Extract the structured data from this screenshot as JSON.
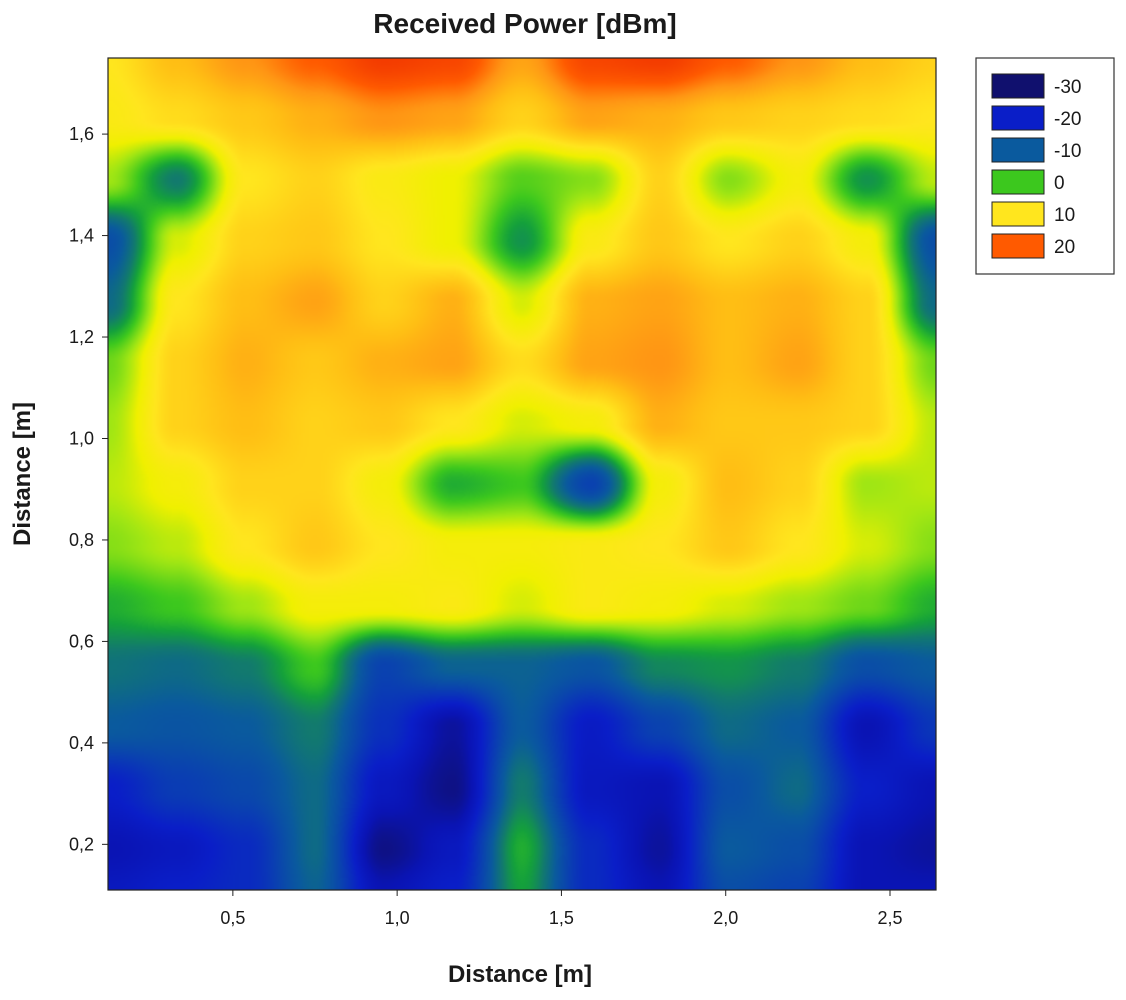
{
  "chart_data": {
    "type": "heatmap",
    "title": "Received Power [dBm]",
    "xlabel": "Distance [m]",
    "ylabel": "Distance [m]",
    "xlim": [
      0.12,
      2.64
    ],
    "ylim": [
      0.11,
      1.75
    ],
    "x_ticks": [
      {
        "value": 0.5,
        "label": "0,5"
      },
      {
        "value": 1.0,
        "label": "1,0"
      },
      {
        "value": 1.5,
        "label": "1,5"
      },
      {
        "value": 2.0,
        "label": "2,0"
      },
      {
        "value": 2.5,
        "label": "2,5"
      }
    ],
    "y_ticks": [
      {
        "value": 0.2,
        "label": "0,2"
      },
      {
        "value": 0.4,
        "label": "0,4"
      },
      {
        "value": 0.6,
        "label": "0,6"
      },
      {
        "value": 0.8,
        "label": "0,8"
      },
      {
        "value": 1.0,
        "label": "1,0"
      },
      {
        "value": 1.2,
        "label": "1,2"
      },
      {
        "value": 1.4,
        "label": "1,4"
      },
      {
        "value": 1.6,
        "label": "1,6"
      }
    ],
    "legend": {
      "position": "top-right",
      "entries": [
        {
          "label": "-30",
          "value": -30,
          "color": "#10106e"
        },
        {
          "label": "-20",
          "value": -20,
          "color": "#0a1ec8"
        },
        {
          "label": "-10",
          "value": -10,
          "color": "#0a5a9e"
        },
        {
          "label": "0",
          "value": 0,
          "color": "#3cc81e"
        },
        {
          "label": "10",
          "value": 10,
          "color": "#ffe61e"
        },
        {
          "label": "20",
          "value": 20,
          "color": "#ff5a00"
        }
      ]
    },
    "colorscale": [
      {
        "value": -34,
        "color": "#0a0a58"
      },
      {
        "value": -30,
        "color": "#10106e"
      },
      {
        "value": -24,
        "color": "#0a14b4"
      },
      {
        "value": -20,
        "color": "#0a1ec8"
      },
      {
        "value": -15,
        "color": "#0a3cb4"
      },
      {
        "value": -10,
        "color": "#0a5a9e"
      },
      {
        "value": -6,
        "color": "#127a6e"
      },
      {
        "value": -3,
        "color": "#14a03c"
      },
      {
        "value": 0,
        "color": "#3cc81e"
      },
      {
        "value": 4,
        "color": "#a0e614"
      },
      {
        "value": 7,
        "color": "#f0f000"
      },
      {
        "value": 10,
        "color": "#ffe61e"
      },
      {
        "value": 14,
        "color": "#ffbe14"
      },
      {
        "value": 17,
        "color": "#ff9614"
      },
      {
        "value": 20,
        "color": "#ff5a00"
      },
      {
        "value": 24,
        "color": "#f03200"
      }
    ],
    "grid": {
      "x": [
        0.12,
        0.33,
        0.54,
        0.75,
        0.96,
        1.17,
        1.38,
        1.59,
        1.8,
        2.01,
        2.22,
        2.43,
        2.64
      ],
      "y": [
        1.75,
        1.63,
        1.51,
        1.39,
        1.27,
        1.15,
        1.03,
        0.91,
        0.79,
        0.67,
        0.55,
        0.43,
        0.31,
        0.19,
        0.11
      ],
      "z": [
        [
          10,
          14,
          17,
          20,
          23,
          22,
          16,
          22,
          23,
          20,
          17,
          14,
          12
        ],
        [
          9,
          11,
          13,
          15,
          17,
          16,
          12,
          16,
          15,
          13,
          12,
          11,
          10
        ],
        [
          4,
          -6,
          10,
          12,
          9,
          7,
          1,
          3,
          12,
          3,
          8,
          -4,
          5
        ],
        [
          -12,
          6,
          12,
          13,
          10,
          7,
          -4,
          9,
          13,
          10,
          12,
          8,
          -12
        ],
        [
          -8,
          10,
          14,
          16,
          12,
          15,
          6,
          15,
          16,
          14,
          15,
          12,
          -8
        ],
        [
          2,
          12,
          15,
          13,
          15,
          16,
          11,
          16,
          17,
          14,
          16,
          12,
          2
        ],
        [
          4,
          12,
          14,
          12,
          13,
          10,
          6,
          8,
          15,
          13,
          13,
          12,
          5
        ],
        [
          5,
          8,
          12,
          12,
          8,
          -2,
          0,
          -14,
          8,
          14,
          12,
          4,
          5
        ],
        [
          3,
          5,
          10,
          13,
          10,
          8,
          8,
          9,
          10,
          13,
          10,
          6,
          3
        ],
        [
          -2,
          0,
          4,
          8,
          8,
          9,
          6,
          9,
          8,
          6,
          4,
          2,
          -2
        ],
        [
          -7,
          -8,
          -6,
          0,
          -14,
          -9,
          -9,
          -11,
          -5,
          -4,
          -6,
          -12,
          -10
        ],
        [
          -10,
          -11,
          -10,
          -6,
          -17,
          -26,
          -10,
          -21,
          -14,
          -8,
          -10,
          -24,
          -16
        ],
        [
          -20,
          -15,
          -13,
          -8,
          -22,
          -28,
          -6,
          -22,
          -24,
          -12,
          -8,
          -20,
          -24
        ],
        [
          -24,
          -22,
          -18,
          -8,
          -28,
          -22,
          -2,
          -18,
          -26,
          -10,
          -12,
          -24,
          -26
        ],
        [
          -22,
          -20,
          -18,
          -9,
          -24,
          -20,
          -3,
          -18,
          -24,
          -12,
          -14,
          -24,
          -24
        ]
      ]
    }
  }
}
